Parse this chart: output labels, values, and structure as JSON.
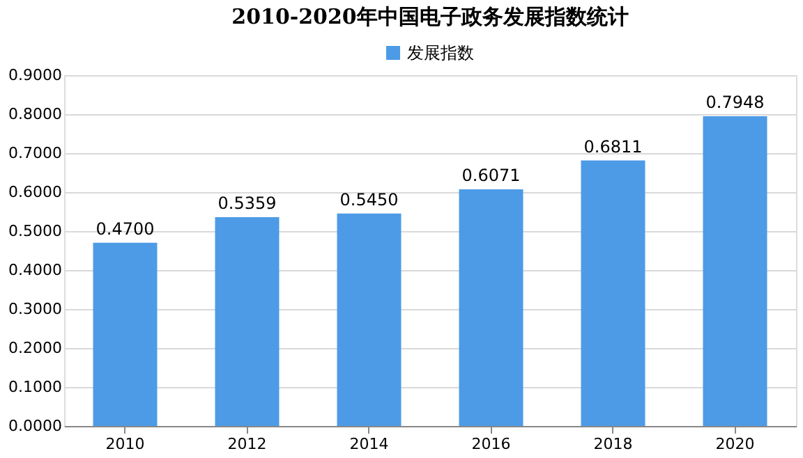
{
  "chart_data": {
    "type": "bar",
    "title": "2010-2020年中国电子政务发展指数统计",
    "categories": [
      "2010",
      "2012",
      "2014",
      "2016",
      "2018",
      "2020"
    ],
    "series": [
      {
        "name": "发展指数",
        "color": "#4d9be6",
        "values": [
          0.47,
          0.5359,
          0.545,
          0.6071,
          0.6811,
          0.7948
        ]
      }
    ],
    "value_labels": [
      "0.4700",
      "0.5359",
      "0.5450",
      "0.6071",
      "0.6811",
      "0.7948"
    ],
    "ylim": [
      0,
      0.9
    ],
    "yticks": [
      {
        "value": 0,
        "label": "0.0000"
      },
      {
        "value": 0.1,
        "label": "0.1000"
      },
      {
        "value": 0.2,
        "label": "0.2000"
      },
      {
        "value": 0.3,
        "label": "0.3000"
      },
      {
        "value": 0.4,
        "label": "0.4000"
      },
      {
        "value": 0.5,
        "label": "0.5000"
      },
      {
        "value": 0.6,
        "label": "0.6000"
      },
      {
        "value": 0.7,
        "label": "0.7000"
      },
      {
        "value": 0.8,
        "label": "0.8000"
      },
      {
        "value": 0.9,
        "label": "0.9000"
      }
    ],
    "grid": "y",
    "legend": "top"
  }
}
